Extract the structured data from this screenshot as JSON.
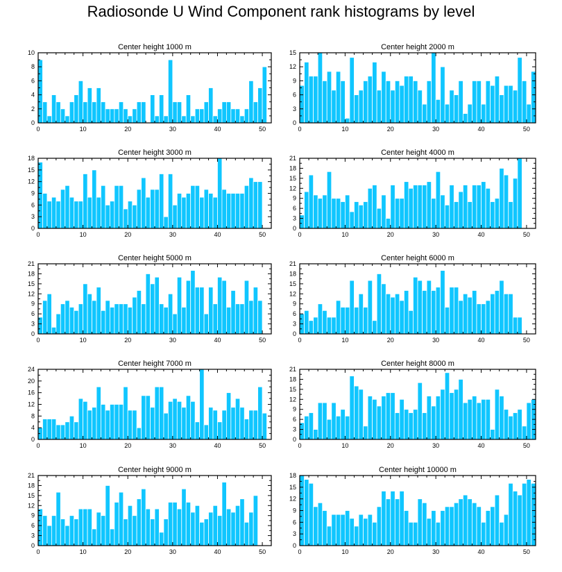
{
  "figure_title": "Radiosonde U Wind Component rank histograms by level",
  "colors": {
    "bar": "#10c6ff",
    "frame": "#000000",
    "background": "#ffffff"
  },
  "chart_data": [
    {
      "type": "bar",
      "title": "Center height 1000 m",
      "xlim": [
        0,
        52
      ],
      "ylim": [
        0,
        10
      ],
      "xticks": [
        0,
        10,
        20,
        30,
        40,
        50
      ],
      "yticks": [
        0,
        2,
        4,
        6,
        8,
        10
      ],
      "values": [
        9,
        3,
        1,
        4,
        3,
        2,
        1,
        3,
        4,
        6,
        3,
        5,
        3,
        5,
        3,
        2,
        2,
        2,
        3,
        2,
        1,
        2,
        3,
        3,
        0,
        4,
        1,
        4,
        1,
        9,
        3,
        3,
        1,
        4,
        1,
        2,
        2,
        3,
        5,
        1,
        2,
        3,
        3,
        2,
        2,
        1,
        2,
        6,
        3,
        5,
        8
      ]
    },
    {
      "type": "bar",
      "title": "Center height 2000 m",
      "xlim": [
        0,
        52
      ],
      "ylim": [
        0,
        15
      ],
      "xticks": [
        0,
        10,
        20,
        30,
        40,
        50
      ],
      "yticks": [
        0,
        3,
        6,
        9,
        12,
        15
      ],
      "values": [
        8,
        13,
        10,
        10,
        15,
        9,
        11,
        7,
        11,
        9,
        1,
        14,
        6,
        7,
        9,
        10,
        13,
        7,
        11,
        9,
        7,
        9,
        8,
        10,
        10,
        9,
        7,
        4,
        9,
        15,
        5,
        12,
        4,
        7,
        6,
        9,
        2,
        4,
        9,
        9,
        4,
        9,
        8,
        10,
        6,
        8,
        8,
        7,
        14,
        9,
        4,
        11
      ]
    },
    {
      "type": "bar",
      "title": "Center height 3000 m",
      "xlim": [
        0,
        52
      ],
      "ylim": [
        0,
        18
      ],
      "xticks": [
        0,
        10,
        20,
        30,
        40,
        50
      ],
      "yticks": [
        0,
        3,
        6,
        9,
        12,
        15,
        18
      ],
      "values": [
        17,
        9,
        7,
        8,
        7,
        10,
        11,
        8,
        7,
        7,
        14,
        8,
        15,
        8,
        11,
        6,
        7,
        11,
        11,
        5,
        7,
        6,
        10,
        13,
        8,
        10,
        10,
        14,
        3,
        14,
        6,
        9,
        8,
        9,
        11,
        11,
        8,
        10,
        9,
        8,
        18,
        10,
        9,
        9,
        9,
        9,
        11,
        13,
        12,
        12
      ]
    },
    {
      "type": "bar",
      "title": "Center height 4000 m",
      "xlim": [
        0,
        52
      ],
      "ylim": [
        0,
        21
      ],
      "xticks": [
        0,
        10,
        20,
        30,
        40,
        50
      ],
      "yticks": [
        0,
        3,
        6,
        9,
        12,
        15,
        18,
        21
      ],
      "values": [
        4,
        11,
        16,
        10,
        9,
        10,
        17,
        9,
        9,
        8,
        10,
        5,
        8,
        7,
        8,
        12,
        13,
        6,
        10,
        3,
        13,
        9,
        9,
        14,
        12,
        13,
        13,
        13,
        14,
        9,
        17,
        10,
        7,
        13,
        8,
        11,
        13,
        8,
        13,
        13,
        14,
        12,
        8,
        9,
        18,
        16,
        8,
        15,
        21
      ]
    },
    {
      "type": "bar",
      "title": "Center height 5000 m",
      "xlim": [
        0,
        52
      ],
      "ylim": [
        0,
        21
      ],
      "xticks": [
        0,
        10,
        20,
        30,
        40,
        50
      ],
      "yticks": [
        0,
        3,
        6,
        9,
        12,
        15,
        18,
        21
      ],
      "values": [
        5,
        10,
        12,
        2,
        6,
        9,
        10,
        8,
        7,
        9,
        15,
        12,
        10,
        14,
        7,
        10,
        8,
        9,
        9,
        9,
        8,
        11,
        13,
        9,
        18,
        15,
        17,
        9,
        8,
        12,
        6,
        17,
        8,
        16,
        19,
        14,
        14,
        6,
        14,
        9,
        17,
        16,
        8,
        13,
        9,
        9,
        16,
        10,
        14,
        10
      ]
    },
    {
      "type": "bar",
      "title": "Center height 6000 m",
      "xlim": [
        0,
        52
      ],
      "ylim": [
        0,
        21
      ],
      "xticks": [
        0,
        10,
        20,
        30,
        40,
        50
      ],
      "yticks": [
        0,
        3,
        6,
        9,
        12,
        15,
        18,
        21
      ],
      "values": [
        6,
        7,
        4,
        5,
        9,
        7,
        5,
        5,
        10,
        8,
        8,
        16,
        8,
        12,
        8,
        16,
        4,
        18,
        15,
        12,
        11,
        12,
        10,
        13,
        7,
        17,
        16,
        13,
        16,
        13,
        14,
        19,
        8,
        14,
        14,
        10,
        12,
        11,
        13,
        9,
        9,
        10,
        12,
        13,
        16,
        12,
        12,
        5,
        5
      ]
    },
    {
      "type": "bar",
      "title": "Center height 7000 m",
      "xlim": [
        0,
        52
      ],
      "ylim": [
        0,
        24
      ],
      "xticks": [
        0,
        10,
        20,
        30,
        40,
        50
      ],
      "yticks": [
        0,
        4,
        8,
        12,
        16,
        20,
        24
      ],
      "values": [
        4,
        7,
        7,
        7,
        5,
        5,
        6,
        8,
        6,
        14,
        13,
        10,
        11,
        18,
        12,
        10,
        12,
        12,
        12,
        18,
        10,
        10,
        4,
        15,
        15,
        11,
        18,
        18,
        9,
        13,
        14,
        13,
        11,
        15,
        13,
        6,
        24,
        5,
        11,
        10,
        6,
        10,
        16,
        11,
        14,
        11,
        7,
        10,
        10,
        18,
        9
      ]
    },
    {
      "type": "bar",
      "title": "Center height 8000 m",
      "xlim": [
        0,
        52
      ],
      "ylim": [
        0,
        21
      ],
      "xticks": [
        0,
        10,
        20,
        30,
        40,
        50
      ],
      "yticks": [
        0,
        3,
        6,
        9,
        12,
        15,
        18,
        21
      ],
      "values": [
        5,
        7,
        8,
        3,
        11,
        11,
        6,
        11,
        7,
        9,
        7,
        19,
        16,
        15,
        4,
        13,
        12,
        10,
        13,
        14,
        14,
        8,
        12,
        9,
        8,
        9,
        17,
        8,
        13,
        10,
        13,
        15,
        20,
        14,
        15,
        18,
        11,
        12,
        13,
        11,
        12,
        12,
        3,
        15,
        13,
        9,
        7,
        8,
        9,
        4,
        11,
        12
      ]
    },
    {
      "type": "bar",
      "title": "Center height 9000 m",
      "xlim": [
        0,
        52
      ],
      "ylim": [
        0,
        21
      ],
      "xticks": [
        0,
        10,
        20,
        30,
        40,
        50
      ],
      "yticks": [
        0,
        3,
        6,
        9,
        12,
        15,
        18,
        21
      ],
      "values": [
        11,
        9,
        6,
        9,
        16,
        8,
        6,
        9,
        8,
        11,
        11,
        11,
        5,
        10,
        9,
        18,
        5,
        13,
        16,
        8,
        12,
        9,
        14,
        17,
        11,
        8,
        11,
        4,
        8,
        13,
        13,
        11,
        17,
        13,
        10,
        12,
        7,
        8,
        10,
        12,
        9,
        19,
        11,
        10,
        12,
        14,
        7,
        10,
        15
      ]
    },
    {
      "type": "bar",
      "title": "Center height 10000 m",
      "xlim": [
        0,
        52
      ],
      "ylim": [
        0,
        18
      ],
      "xticks": [
        0,
        10,
        20,
        30,
        40,
        50
      ],
      "yticks": [
        0,
        3,
        6,
        9,
        12,
        15,
        18
      ],
      "values": [
        18,
        17,
        16,
        10,
        11,
        9,
        5,
        8,
        8,
        8,
        9,
        7,
        5,
        8,
        7,
        8,
        6,
        10,
        14,
        12,
        14,
        12,
        14,
        9,
        6,
        6,
        12,
        11,
        7,
        9,
        6,
        9,
        10,
        10,
        11,
        12,
        13,
        12,
        11,
        10,
        6,
        9,
        10,
        13,
        6,
        8,
        16,
        14,
        13,
        16,
        17,
        16
      ]
    }
  ]
}
